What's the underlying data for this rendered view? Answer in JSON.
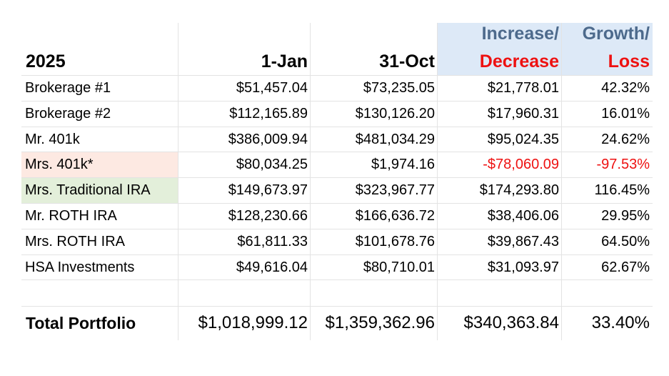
{
  "header": {
    "year": "2025",
    "col_start": "1-Jan",
    "col_end": "31-Oct",
    "col_change_top": "Increase/",
    "col_change_bottom": "Decrease",
    "col_pct_top": "Growth/",
    "col_pct_bottom": "Loss"
  },
  "colors": {
    "header_fill": "#dde9f7",
    "row_mrs_401k_fill": "#fde9e2",
    "row_mrs_trad_ira_fill": "#e3efda",
    "negative_text": "#ee1111",
    "header_top_text": "#4d6a8c"
  },
  "rows": [
    {
      "account": "Brokerage #1",
      "start": "$51,457.04",
      "end": "$73,235.05",
      "change": "$21,778.01",
      "pct": "42.32%",
      "negative": false,
      "fill": ""
    },
    {
      "account": "Brokerage #2",
      "start": "$112,165.89",
      "end": "$130,126.20",
      "change": "$17,960.31",
      "pct": "16.01%",
      "negative": false,
      "fill": ""
    },
    {
      "account": "Mr. 401k",
      "start": "$386,009.94",
      "end": "$481,034.29",
      "change": "$95,024.35",
      "pct": "24.62%",
      "negative": false,
      "fill": ""
    },
    {
      "account": "Mrs. 401k*",
      "start": "$80,034.25",
      "end": "$1,974.16",
      "change": "-$78,060.09",
      "pct": "-97.53%",
      "negative": true,
      "fill": "#fde9e2"
    },
    {
      "account": "Mrs. Traditional IRA",
      "start": "$149,673.97",
      "end": "$323,967.77",
      "change": "$174,293.80",
      "pct": "116.45%",
      "negative": false,
      "fill": "#e3efda"
    },
    {
      "account": "Mr. ROTH IRA",
      "start": "$128,230.66",
      "end": "$166,636.72",
      "change": "$38,406.06",
      "pct": "29.95%",
      "negative": false,
      "fill": ""
    },
    {
      "account": "Mrs. ROTH IRA",
      "start": "$61,811.33",
      "end": "$101,678.76",
      "change": "$39,867.43",
      "pct": "64.50%",
      "negative": false,
      "fill": ""
    },
    {
      "account": "HSA Investments",
      "start": "$49,616.04",
      "end": "$80,710.01",
      "change": "$31,093.97",
      "pct": "62.67%",
      "negative": false,
      "fill": ""
    }
  ],
  "total": {
    "label": "Total Portfolio",
    "start": "$1,018,999.12",
    "end": "$1,359,362.96",
    "change": "$340,363.84",
    "pct": "33.40%"
  }
}
